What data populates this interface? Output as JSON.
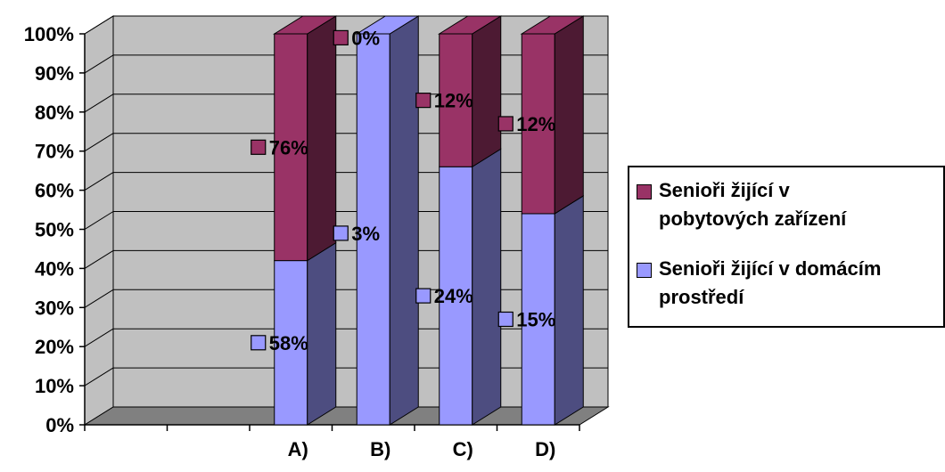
{
  "chart_data": {
    "type": "bar",
    "stacked": true,
    "three_d": true,
    "categories": [
      "",
      "",
      "A)",
      "B)",
      "C)",
      "D)"
    ],
    "y_ticks": [
      "0%",
      "10%",
      "20%",
      "30%",
      "40%",
      "50%",
      "60%",
      "70%",
      "80%",
      "90%",
      "100%"
    ],
    "ylim": [
      0,
      1
    ],
    "grid": true,
    "legend_position": "right",
    "series": [
      {
        "name": "Senioři žijící v domácím prostředí",
        "color": "#9999ff",
        "side_color": "#4d4d80",
        "values": [
          null,
          null,
          0.42,
          1.0,
          0.66,
          0.54
        ],
        "labels": [
          "",
          "",
          "58%",
          "3%",
          "24%",
          "15%"
        ],
        "label_positions": [
          null,
          null,
          0.21,
          0.49,
          0.33,
          0.27
        ]
      },
      {
        "name": "Senioři žijící v pobytových zařízení",
        "color": "#993366",
        "side_color": "#4d1a33",
        "values": [
          null,
          null,
          0.58,
          0.0,
          0.34,
          0.46
        ],
        "labels": [
          "",
          "",
          "76%",
          "0%",
          "12%",
          "12%"
        ],
        "label_positions": [
          null,
          null,
          0.71,
          0.99,
          0.83,
          0.77
        ]
      }
    ]
  },
  "legend": {
    "items": [
      {
        "line1": "Senioři žijící v",
        "line2": "pobytových zařízení",
        "color": "#993366"
      },
      {
        "line1": "Senioři žijící v domácím",
        "line2": "prostředí",
        "color": "#9999ff"
      }
    ]
  }
}
